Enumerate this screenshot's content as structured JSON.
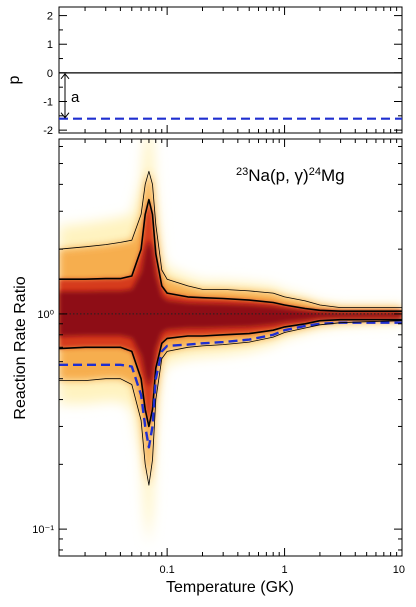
{
  "chart_data": [
    {
      "type": "line",
      "panel": "top",
      "ylabel": "p",
      "ylim": [
        -2.1,
        2.3
      ],
      "xscale": "log",
      "xlim": [
        0.012,
        10
      ],
      "yticks": [
        2,
        1,
        0,
        -1,
        -2
      ],
      "ytick_labels": [
        "2",
        "1",
        "0",
        "-1",
        "-2"
      ],
      "series": [
        {
          "style": "solid",
          "color": "#000000",
          "value": 0
        },
        {
          "style": "dashed",
          "color": "#1f2fd0",
          "value": -1.6
        }
      ],
      "annotation": {
        "text": "a",
        "from": 0,
        "to": -1.6,
        "x": 0.0135
      }
    },
    {
      "type": "area",
      "panel": "bottom",
      "title": "23Na(p, γ)24Mg",
      "title_parts": {
        "mass_a": "23",
        "elem_a": "Na(p, γ)",
        "mass_b": "24",
        "elem_b": "Mg"
      },
      "xlabel": "Temperature (GK)",
      "ylabel": "Reaction Rate Ratio",
      "xscale": "log",
      "yscale": "log",
      "xlim": [
        0.012,
        10
      ],
      "ylim": [
        0.075,
        6.5
      ],
      "xticks": [
        0.1,
        1,
        10
      ],
      "xtick_labels": [
        "0.1",
        "1",
        "10"
      ],
      "yticks": [
        0.1,
        1
      ],
      "ytick_labels": [
        "10⁻¹",
        "10⁰"
      ],
      "reference_line": 1.0,
      "x": [
        0.012,
        0.02,
        0.03,
        0.04,
        0.05,
        0.06,
        0.065,
        0.07,
        0.075,
        0.08,
        0.09,
        0.1,
        0.15,
        0.2,
        0.3,
        0.5,
        0.8,
        1,
        1.5,
        2,
        3,
        5,
        10
      ],
      "series": [
        {
          "name": "",
          "style": "thin",
          "values": [
            2.0,
            2.05,
            2.1,
            2.15,
            2.2,
            2.9,
            4.0,
            4.6,
            4.0,
            2.6,
            1.6,
            1.45,
            1.35,
            1.3,
            1.3,
            1.28,
            1.25,
            1.2,
            1.15,
            1.1,
            1.07,
            1.07,
            1.07
          ]
        },
        {
          "name": "",
          "style": "thick",
          "values": [
            1.45,
            1.45,
            1.46,
            1.46,
            1.5,
            2.0,
            2.9,
            3.4,
            2.9,
            1.9,
            1.35,
            1.25,
            1.2,
            1.19,
            1.18,
            1.16,
            1.13,
            1.1,
            1.06,
            1.04,
            1.03,
            1.03,
            1.03
          ]
        },
        {
          "name": "",
          "style": "thick",
          "values": [
            0.69,
            0.7,
            0.7,
            0.7,
            0.67,
            0.5,
            0.36,
            0.3,
            0.36,
            0.56,
            0.73,
            0.77,
            0.79,
            0.79,
            0.8,
            0.81,
            0.84,
            0.87,
            0.9,
            0.93,
            0.94,
            0.94,
            0.94
          ]
        },
        {
          "name": "",
          "style": "dashed",
          "values": [
            0.58,
            0.58,
            0.58,
            0.58,
            0.57,
            0.42,
            0.3,
            0.24,
            0.3,
            0.5,
            0.67,
            0.71,
            0.72,
            0.73,
            0.74,
            0.76,
            0.8,
            0.84,
            0.88,
            0.9,
            0.91,
            0.91,
            0.91
          ]
        },
        {
          "name": "",
          "style": "thin",
          "values": [
            0.49,
            0.49,
            0.5,
            0.5,
            0.47,
            0.32,
            0.2,
            0.16,
            0.21,
            0.4,
            0.62,
            0.67,
            0.7,
            0.71,
            0.72,
            0.74,
            0.78,
            0.82,
            0.86,
            0.89,
            0.91,
            0.92,
            0.93
          ]
        }
      ],
      "colors": {
        "dark": "#8e0a12",
        "mid": "#d63a1c",
        "light": "#f5a23a",
        "pale": "#fff3c0",
        "dashed": "#1f2fd0"
      }
    }
  ]
}
